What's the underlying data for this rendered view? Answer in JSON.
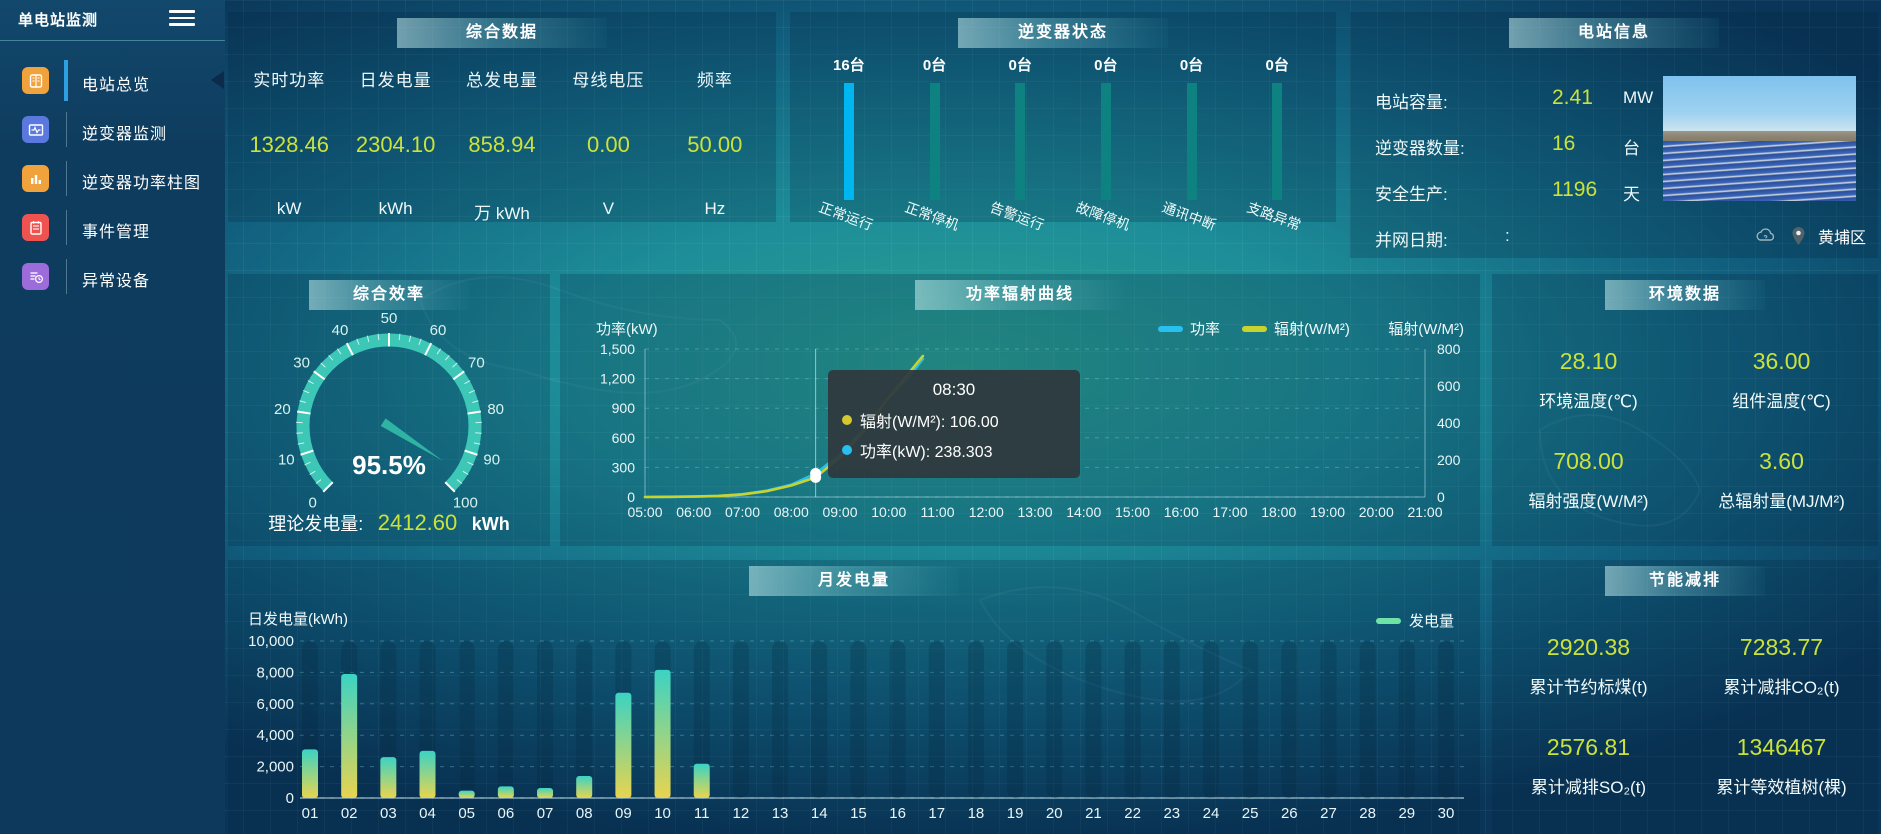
{
  "sidebar": {
    "title": "单电站监测",
    "items": [
      {
        "label": "电站总览",
        "icon": "overview-book-icon",
        "active": true
      },
      {
        "label": "逆变器监测",
        "icon": "inverter-monitor-icon",
        "active": false
      },
      {
        "label": "逆变器功率柱图",
        "icon": "power-barchart-icon",
        "active": false
      },
      {
        "label": "事件管理",
        "icon": "event-notebook-icon",
        "active": false
      },
      {
        "label": "异常设备",
        "icon": "abnormal-device-icon",
        "active": false
      }
    ]
  },
  "overview": {
    "title": "综合数据",
    "metrics": [
      {
        "label": "实时功率",
        "value": "1328.46",
        "unit": "kW"
      },
      {
        "label": "日发电量",
        "value": "2304.10",
        "unit": "kWh"
      },
      {
        "label": "总发电量",
        "value": "858.94",
        "unit": "万 kWh"
      },
      {
        "label": "母线电压",
        "value": "0.00",
        "unit": "V"
      },
      {
        "label": "频率",
        "value": "50.00",
        "unit": "Hz"
      }
    ]
  },
  "station_info": {
    "title": "电站信息",
    "rows": [
      {
        "label": "电站容量:",
        "value": "2.41",
        "unit": "MW"
      },
      {
        "label": "逆变器数量:",
        "value": "16",
        "unit": "台"
      },
      {
        "label": "安全生产:",
        "value": "1196",
        "unit": "天"
      },
      {
        "label": "并网日期:",
        "value": ":",
        "unit": ""
      }
    ],
    "location": "黄埔区"
  },
  "efficiency": {
    "theory_label": "理论发电量:",
    "theory_value": "2412.60",
    "theory_unit": "kWh"
  },
  "environment": {
    "title": "环境数据",
    "metrics": [
      {
        "value": "28.10",
        "label": "环境温度(℃)"
      },
      {
        "value": "36.00",
        "label": "组件温度(℃)"
      },
      {
        "value": "708.00",
        "label": "辐射强度(W/M²)"
      },
      {
        "value": "3.60",
        "label": "总辐射量(MJ/M²)"
      }
    ]
  },
  "saving": {
    "title": "节能减排",
    "metrics": [
      {
        "value": "2920.38",
        "label": "累计节约标煤(t)"
      },
      {
        "value": "7283.77",
        "label": "累计减排CO₂(t)"
      },
      {
        "value": "2576.81",
        "label": "累计减排SO₂(t)"
      },
      {
        "value": "1346467",
        "label": "累计等效植树(棵)"
      }
    ]
  },
  "colors": {
    "value_yellow": "#cbe23a",
    "active_accent": "#2e9fe0",
    "highlight_bar": "#00b6f0",
    "normal_bar": "#0e8181"
  },
  "chart_data": [
    {
      "id": "inverter_status",
      "type": "bar",
      "title": "逆变器状态",
      "categories": [
        "正常运行",
        "正常停机",
        "告警运行",
        "故障停机",
        "通讯中断",
        "支路异常"
      ],
      "values": [
        16,
        0,
        0,
        0,
        0,
        0
      ],
      "display": [
        "16台",
        "0台",
        "0台",
        "0台",
        "0台",
        "0台"
      ],
      "colors": {
        "highlight": "#00b6f0",
        "normal": "#0e8181"
      }
    },
    {
      "id": "efficiency_gauge",
      "type": "gauge",
      "title": "综合效率",
      "value": 95.5,
      "value_label": "95.5%",
      "min": 0,
      "max": 100,
      "tick_labels": [
        "0",
        "10",
        "20",
        "30",
        "40",
        "50",
        "60",
        "70",
        "80",
        "90",
        "100"
      ],
      "band_color": "#3dc7b6"
    },
    {
      "id": "power_radiation",
      "type": "line",
      "title": "功率辐射曲线",
      "ylabel_left": "功率(kW)",
      "ylabel_right": "辐射(W/M²)",
      "ylim_left": [
        0,
        1500
      ],
      "ylim_right": [
        0,
        800
      ],
      "left_ticks": [
        "1,500",
        "1,200",
        "900",
        "600",
        "300",
        "0"
      ],
      "right_ticks": [
        "800",
        "600",
        "400",
        "200",
        "0"
      ],
      "x_labels": [
        "05:00",
        "06:00",
        "07:00",
        "08:00",
        "09:00",
        "10:00",
        "11:00",
        "12:00",
        "13:00",
        "14:00",
        "15:00",
        "16:00",
        "17:00",
        "18:00",
        "19:00",
        "20:00",
        "21:00"
      ],
      "legend": [
        "功率",
        "辐射(W/M²)"
      ],
      "series": [
        {
          "name": "功率",
          "color": "#28c0f0",
          "axis": "left",
          "points": [
            [
              5,
              0
            ],
            [
              5.5,
              1
            ],
            [
              6,
              4
            ],
            [
              6.5,
              10
            ],
            [
              7,
              28
            ],
            [
              7.5,
              65
            ],
            [
              8,
              125
            ],
            [
              8.5,
              238.3
            ],
            [
              9,
              430
            ],
            [
              9.5,
              700
            ],
            [
              10,
              1010
            ],
            [
              10.35,
              1180
            ],
            [
              10.7,
              1400
            ]
          ]
        },
        {
          "name": "辐射(W/M²)",
          "color": "#c9d32e",
          "axis": "right",
          "points": [
            [
              5,
              0
            ],
            [
              5.5,
              1
            ],
            [
              6,
              2
            ],
            [
              6.5,
              6
            ],
            [
              7,
              14
            ],
            [
              7.5,
              32
            ],
            [
              8,
              62
            ],
            [
              8.5,
              106
            ],
            [
              9,
              215
            ],
            [
              9.5,
              360
            ],
            [
              10,
              540
            ],
            [
              10.35,
              650
            ],
            [
              10.7,
              762
            ]
          ]
        }
      ],
      "hover": {
        "x": 8.5,
        "time": "08:30",
        "rows": [
          {
            "color": "#d4c92e",
            "text": "辐射(W/M²): 106.00"
          },
          {
            "color": "#28c0f0",
            "text": "功率(kW): 238.303"
          }
        ]
      }
    },
    {
      "id": "monthly_energy",
      "type": "bar",
      "title": "月发电量",
      "ylabel": "日发电量(kWh)",
      "legend": "发电量",
      "ylim": [
        0,
        10000
      ],
      "y_ticks": [
        "10,000",
        "8,000",
        "6,000",
        "4,000",
        "2,000",
        "0"
      ],
      "categories": [
        "01",
        "02",
        "03",
        "04",
        "05",
        "06",
        "07",
        "08",
        "09",
        "10",
        "11",
        "12",
        "13",
        "14",
        "15",
        "16",
        "17",
        "18",
        "19",
        "20",
        "21",
        "22",
        "23",
        "24",
        "25",
        "26",
        "27",
        "28",
        "29",
        "30"
      ],
      "values": [
        3100,
        7900,
        2600,
        3000,
        470,
        740,
        640,
        1400,
        6700,
        8160,
        2180,
        0,
        0,
        0,
        0,
        0,
        0,
        0,
        0,
        0,
        0,
        0,
        0,
        0,
        0,
        0,
        0,
        0,
        0,
        0
      ],
      "colors": {
        "top": "#3bd3c3",
        "bottom": "#e8d44f",
        "legend": "#6fe3a6"
      }
    }
  ]
}
